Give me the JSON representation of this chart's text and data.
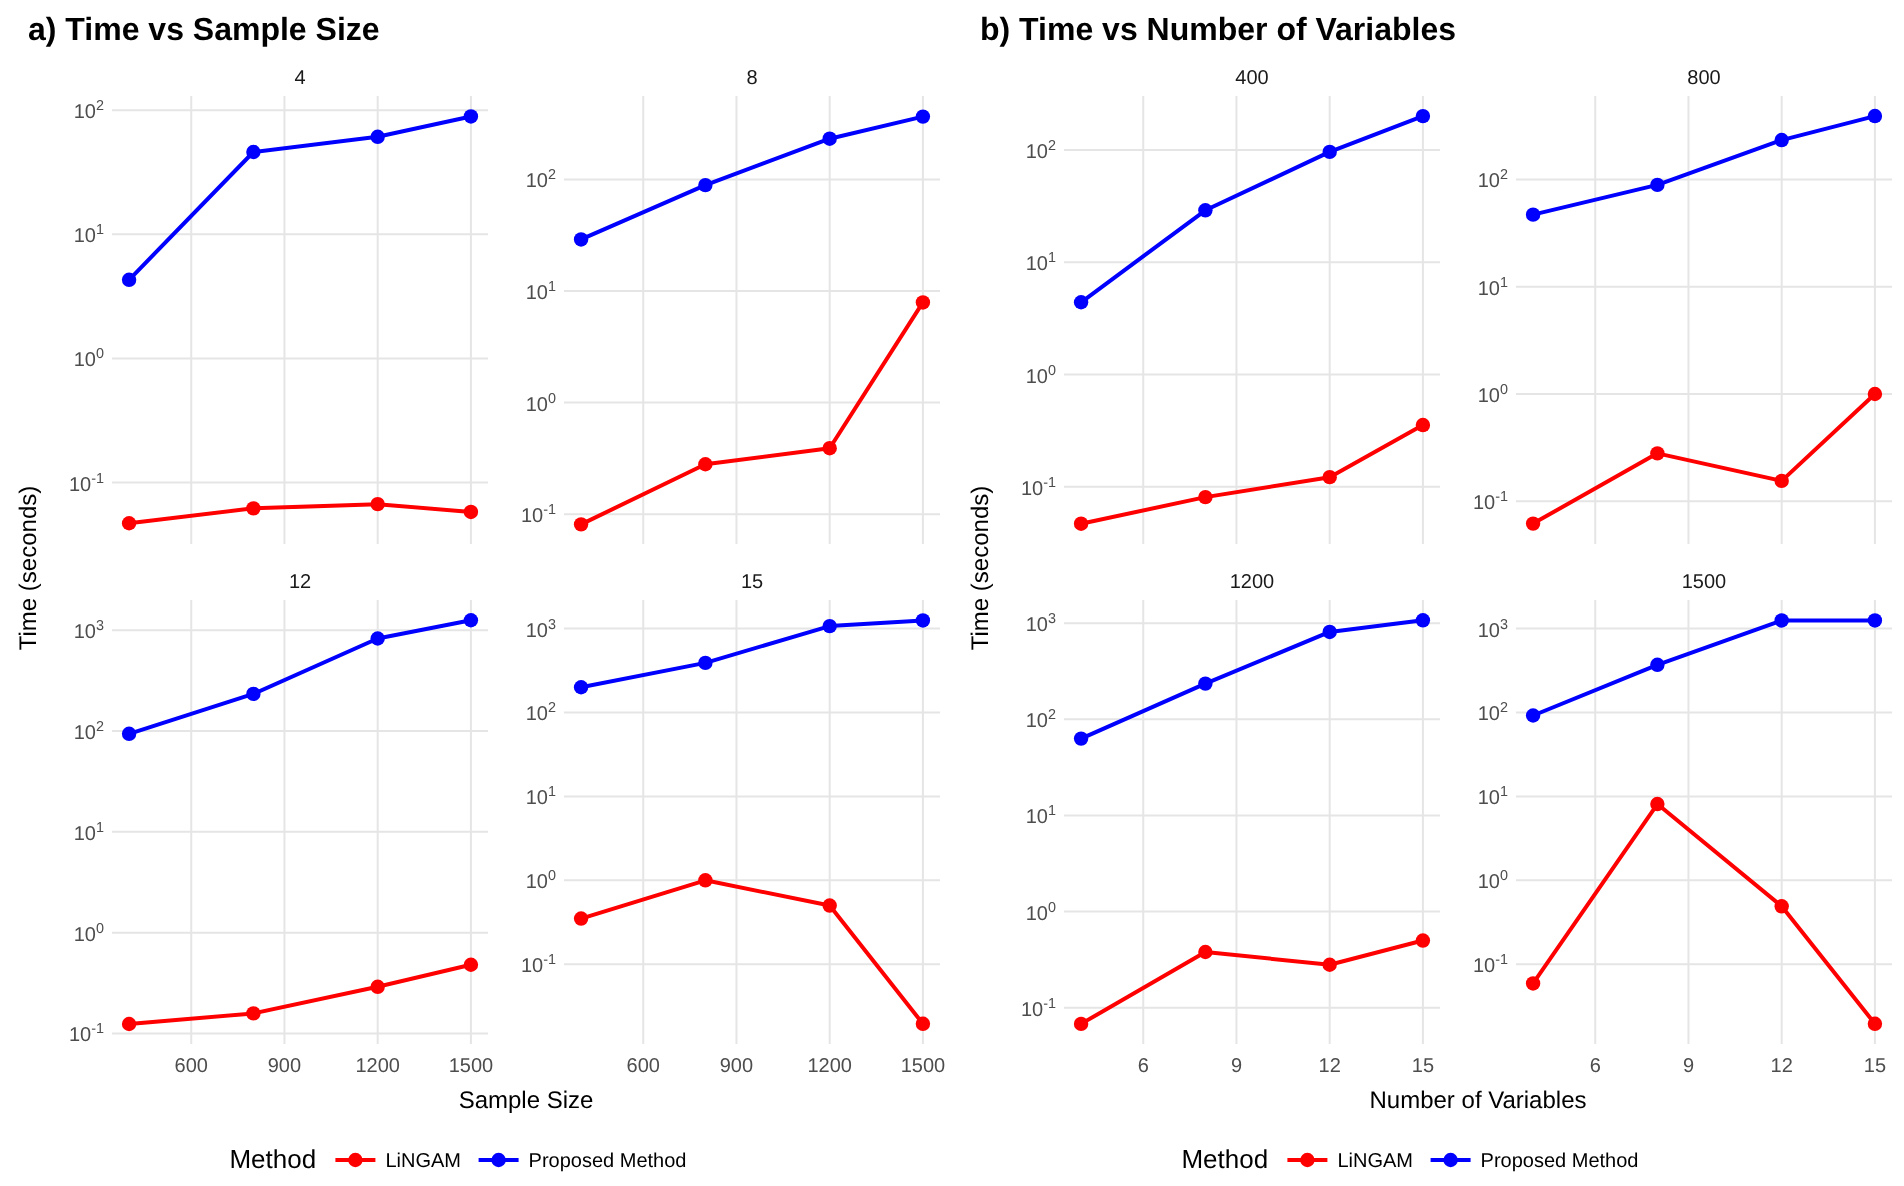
{
  "chart_data": [
    {
      "type": "line",
      "title": "a) Time vs Sample Size",
      "subtitle": "4",
      "ylabel": "Time (seconds)",
      "x": [
        400,
        800,
        1200,
        1500
      ],
      "xlim": [
        345,
        1555
      ],
      "xticks": [
        600,
        900,
        1200,
        1500
      ],
      "ylim": [
        0.032,
        130
      ],
      "yticks": [
        {
          "value": 0.1,
          "label": "10$^{-1}$"
        },
        {
          "value": 1,
          "label": "10$^{0}$"
        },
        {
          "value": 10,
          "label": "10$^{1}$"
        },
        {
          "value": 100,
          "label": "10$^{2}$"
        }
      ],
      "log": "y",
      "grid": true,
      "marker": "circle",
      "tick_labels": "y",
      "series": [
        {
          "color": "#ff0000",
          "values": [
            0.047,
            0.062,
            0.067,
            0.058
          ]
        },
        {
          "color": "#0000ff",
          "values": [
            4.3,
            46,
            61,
            89
          ]
        }
      ]
    },
    {
      "type": "line",
      "subtitle": "8",
      "x": [
        400,
        800,
        1200,
        1500
      ],
      "xlim": [
        345,
        1555
      ],
      "xticks": [
        600,
        900,
        1200,
        1500
      ],
      "ylim": [
        0.054,
        560
      ],
      "yticks": [
        {
          "value": 0.1,
          "label": "10$^{-1}$"
        },
        {
          "value": 1,
          "label": "10$^{0}$"
        },
        {
          "value": 10,
          "label": "10$^{1}$"
        },
        {
          "value": 100,
          "label": "10$^{2}$"
        }
      ],
      "log": "y",
      "grid": true,
      "marker": "circle",
      "tick_labels": "y",
      "series": [
        {
          "color": "#ff0000",
          "values": [
            0.081,
            0.28,
            0.39,
            7.9
          ]
        },
        {
          "color": "#0000ff",
          "values": [
            29,
            89,
            232,
            366
          ]
        }
      ]
    },
    {
      "type": "line",
      "subtitle": "12",
      "xlabel": "Sample Size",
      "legend_title": "Method",
      "legend": "bottom",
      "x": [
        400,
        800,
        1200,
        1500
      ],
      "xlim": [
        345,
        1555
      ],
      "xticks": [
        600,
        900,
        1200,
        1500
      ],
      "ylim": [
        0.0785,
        2000
      ],
      "yticks": [
        {
          "value": 0.1,
          "label": "10$^{-1}$"
        },
        {
          "value": 1,
          "label": "10$^{0}$"
        },
        {
          "value": 10,
          "label": "10$^{1}$"
        },
        {
          "value": 100,
          "label": "10$^{2}$"
        },
        {
          "value": 1000,
          "label": "10$^{3}$"
        }
      ],
      "log": "y",
      "grid": true,
      "marker": "circle",
      "series": [
        {
          "name": "LiNGAM",
          "color": "#ff0000",
          "values": [
            0.124,
            0.158,
            0.29,
            0.48
          ]
        },
        {
          "name": "Proposed Method",
          "color": "#0000ff",
          "values": [
            94,
            234,
            830,
            1260
          ]
        }
      ]
    },
    {
      "type": "line",
      "subtitle": "15",
      "x": [
        400,
        800,
        1200,
        1500
      ],
      "xlim": [
        345,
        1555
      ],
      "xticks": [
        600,
        900,
        1200,
        1500
      ],
      "ylim": [
        0.0112,
        2190
      ],
      "yticks": [
        {
          "value": 0.1,
          "label": "10$^{-1}$"
        },
        {
          "value": 1,
          "label": "10$^{0}$"
        },
        {
          "value": 10,
          "label": "10$^{1}$"
        },
        {
          "value": 100,
          "label": "10$^{2}$"
        },
        {
          "value": 1000,
          "label": "10$^{3}$"
        }
      ],
      "log": "y",
      "grid": true,
      "marker": "circle",
      "series": [
        {
          "color": "#ff0000",
          "values": [
            0.35,
            1.0,
            0.5,
            0.0195
          ]
        },
        {
          "color": "#0000ff",
          "values": [
            200,
            390,
            1070,
            1250
          ]
        }
      ]
    },
    {
      "type": "line",
      "title": "b) Time vs Number of Variables",
      "subtitle": "400",
      "ylabel": "Time (seconds)",
      "x": [
        4,
        8,
        12,
        15
      ],
      "xlim": [
        3.45,
        15.55
      ],
      "xticks": [
        6,
        9,
        12,
        15
      ],
      "ylim": [
        0.031,
        302
      ],
      "yticks": [
        {
          "value": 0.1,
          "label": "10$^{-1}$"
        },
        {
          "value": 1,
          "label": "10$^{0}$"
        },
        {
          "value": 10,
          "label": "10$^{1}$"
        },
        {
          "value": 100,
          "label": "10$^{2}$"
        }
      ],
      "log": "y",
      "grid": true,
      "marker": "circle",
      "tick_labels": "y",
      "series": [
        {
          "color": "#ff0000",
          "values": [
            0.047,
            0.081,
            0.122,
            0.355
          ]
        },
        {
          "color": "#0000ff",
          "values": [
            4.4,
            29,
            96,
            200
          ]
        }
      ]
    },
    {
      "type": "line",
      "subtitle": "800",
      "x": [
        4,
        8,
        12,
        15
      ],
      "xlim": [
        3.45,
        15.55
      ],
      "xticks": [
        6,
        9,
        12,
        15
      ],
      "ylim": [
        0.04,
        600
      ],
      "yticks": [
        {
          "value": 0.1,
          "label": "10$^{-1}$"
        },
        {
          "value": 1,
          "label": "10$^{0}$"
        },
        {
          "value": 10,
          "label": "10$^{1}$"
        },
        {
          "value": 100,
          "label": "10$^{2}$"
        }
      ],
      "log": "y",
      "grid": true,
      "marker": "circle",
      "tick_labels": "y",
      "series": [
        {
          "color": "#ff0000",
          "values": [
            0.062,
            0.28,
            0.155,
            1.0
          ]
        },
        {
          "color": "#0000ff",
          "values": [
            47,
            89,
            233,
            390
          ]
        }
      ]
    },
    {
      "type": "line",
      "subtitle": "1200",
      "xlabel": "Number of Variables",
      "legend_title": "Method",
      "legend": "bottom",
      "x": [
        4,
        8,
        12,
        15
      ],
      "xlim": [
        3.45,
        15.55
      ],
      "xticks": [
        6,
        9,
        12,
        15
      ],
      "ylim": [
        0.042,
        1740
      ],
      "yticks": [
        {
          "value": 0.1,
          "label": "10$^{-1}$"
        },
        {
          "value": 1,
          "label": "10$^{0}$"
        },
        {
          "value": 10,
          "label": "10$^{1}$"
        },
        {
          "value": 100,
          "label": "10$^{2}$"
        },
        {
          "value": 1000,
          "label": "10$^{3}$"
        }
      ],
      "log": "y",
      "grid": true,
      "marker": "circle",
      "series": [
        {
          "name": "LiNGAM",
          "color": "#ff0000",
          "values": [
            0.068,
            0.38,
            0.28,
            0.5
          ]
        },
        {
          "name": "Proposed Method",
          "color": "#0000ff",
          "values": [
            63,
            235,
            810,
            1070
          ]
        }
      ]
    },
    {
      "type": "line",
      "subtitle": "1500",
      "x": [
        4,
        8,
        12,
        15
      ],
      "xlim": [
        3.45,
        15.55
      ],
      "xticks": [
        6,
        9,
        12,
        15
      ],
      "ylim": [
        0.0112,
        2190
      ],
      "yticks": [
        {
          "value": 0.1,
          "label": "10$^{-1}$"
        },
        {
          "value": 1,
          "label": "10$^{0}$"
        },
        {
          "value": 10,
          "label": "10$^{1}$"
        },
        {
          "value": 100,
          "label": "10$^{2}$"
        },
        {
          "value": 1000,
          "label": "10$^{3}$"
        }
      ],
      "log": "y",
      "grid": true,
      "marker": "circle",
      "series": [
        {
          "color": "#ff0000",
          "values": [
            0.059,
            8.1,
            0.49,
            0.0195
          ]
        },
        {
          "color": "#0000ff",
          "values": [
            92,
            370,
            1250,
            1250
          ]
        }
      ]
    }
  ]
}
